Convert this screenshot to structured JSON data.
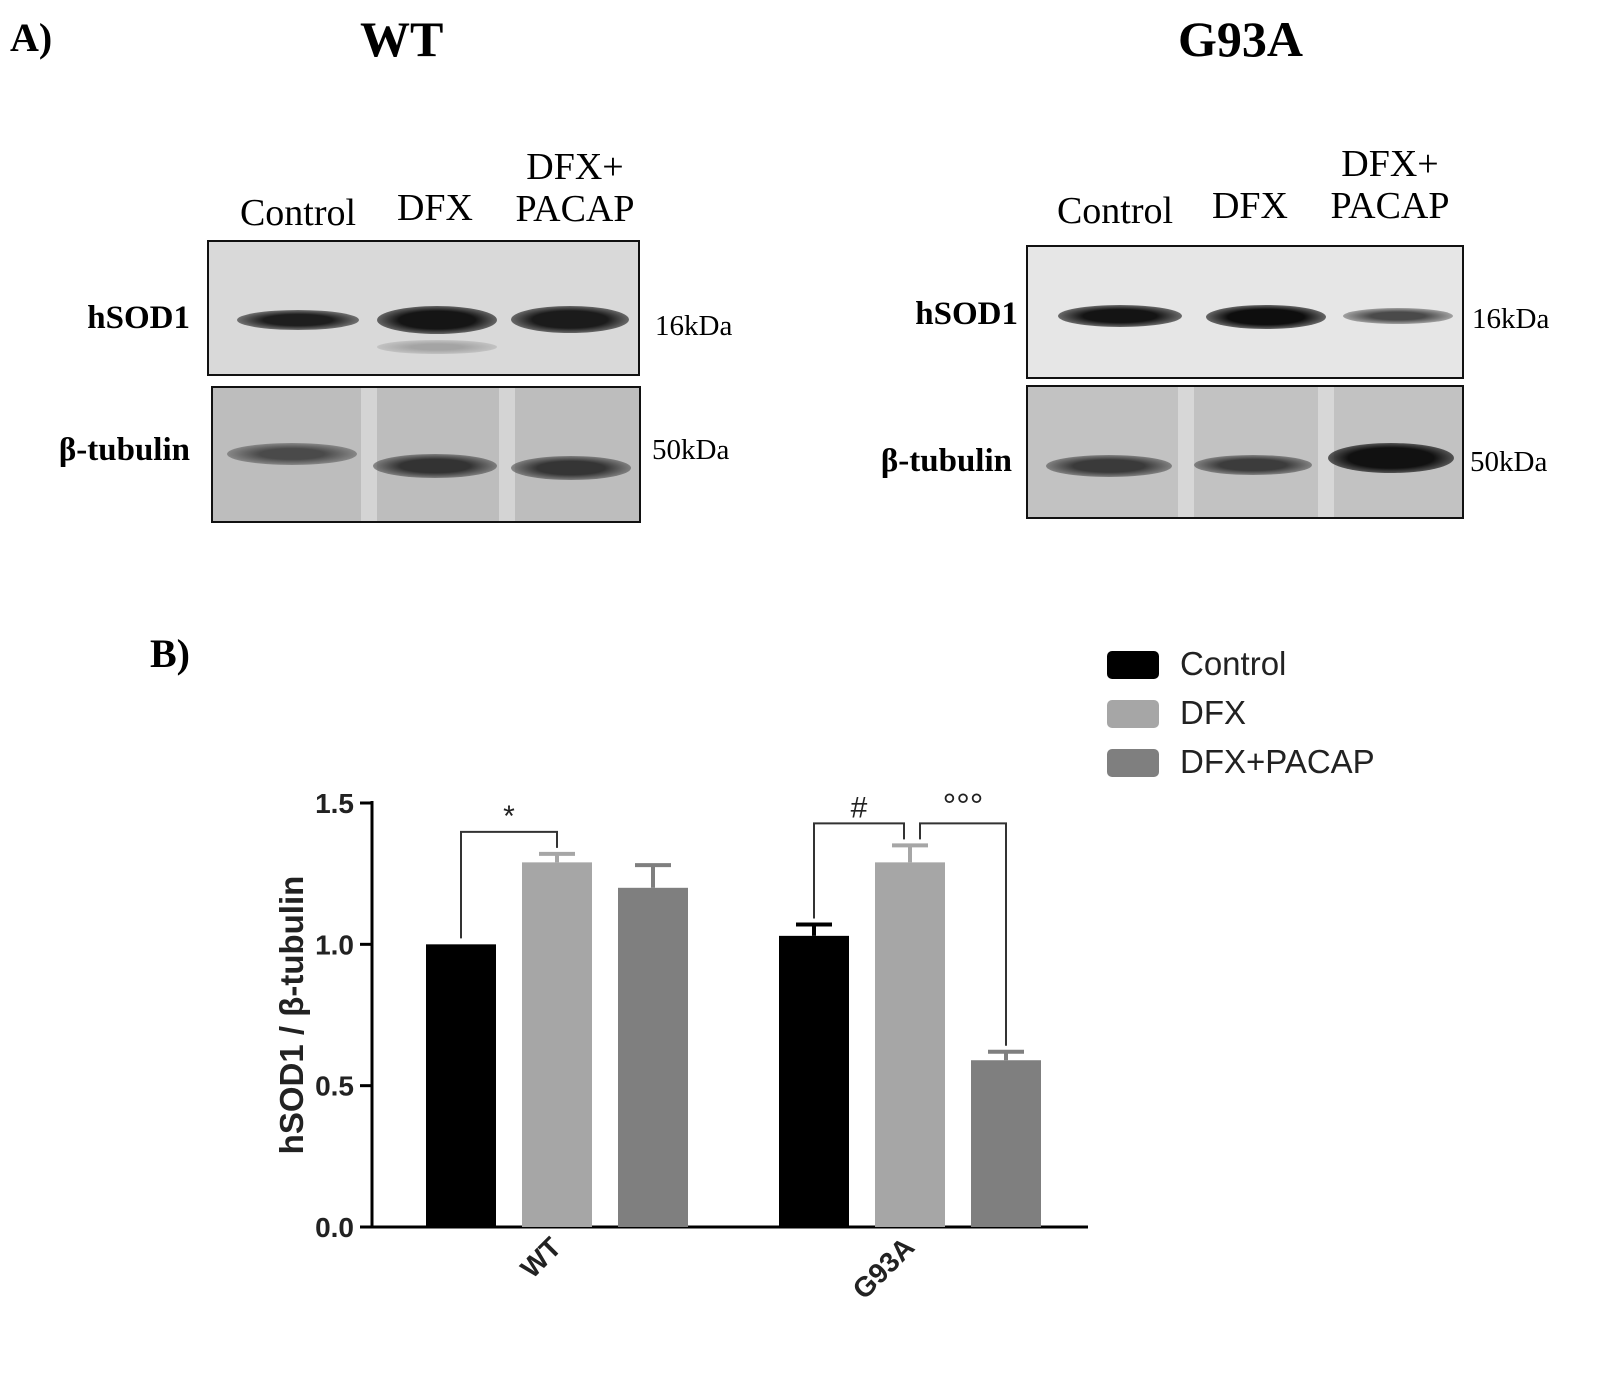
{
  "panel_a": {
    "letter": "A)",
    "blots": [
      {
        "title": "WT",
        "lanes": [
          "Control",
          "DFX",
          "DFX+\nPACAP"
        ],
        "rows": [
          {
            "label": "hSOD1",
            "marker": "16kDa"
          },
          {
            "label": "β-tubulin",
            "marker": "50kDa"
          }
        ]
      },
      {
        "title": "G93A",
        "lanes": [
          "Control",
          "DFX",
          "DFX+\nPACAP"
        ],
        "rows": [
          {
            "label": "hSOD1",
            "marker": "16kDa"
          },
          {
            "label": "β-tubulin",
            "marker": "50kDa"
          }
        ]
      }
    ]
  },
  "panel_b": {
    "letter": "B)"
  },
  "colors": {
    "control": "#000000",
    "dfx": "#a6a6a6",
    "dfx_pacap": "#7f7f7f"
  },
  "chart_data": {
    "type": "bar",
    "categories": [
      "WT",
      "G93A"
    ],
    "series": [
      {
        "name": "Control",
        "values": [
          1.0,
          1.03
        ],
        "errors": [
          0.0,
          0.04
        ]
      },
      {
        "name": "DFX",
        "values": [
          1.29,
          1.29
        ],
        "errors": [
          0.03,
          0.06
        ]
      },
      {
        "name": "DFX+PACAP",
        "values": [
          1.2,
          0.59
        ],
        "errors": [
          0.08,
          0.03
        ]
      }
    ],
    "ylabel": "hSOD1 / β-tubulin",
    "ylim": [
      0.0,
      1.5
    ],
    "yticks": [
      "0.0",
      "0.5",
      "1.0",
      "1.5"
    ],
    "grid": false,
    "legend_position": "top-right",
    "significance": [
      {
        "symbol": "*",
        "category": "WT",
        "from": "Control",
        "to": "DFX"
      },
      {
        "symbol": "#",
        "category": "G93A",
        "from": "Control",
        "to": "DFX"
      },
      {
        "symbol": "°°°",
        "category": "G93A",
        "from": "DFX",
        "to": "DFX+PACAP"
      }
    ]
  }
}
